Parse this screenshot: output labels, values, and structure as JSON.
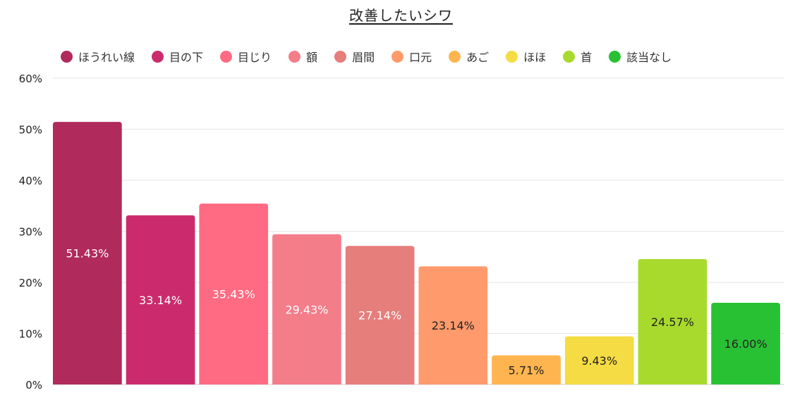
{
  "chart_data": {
    "type": "bar",
    "title": "改善したいシワ",
    "xlabel": "",
    "ylabel": "",
    "ylim": [
      0,
      60
    ],
    "yticks": [
      0,
      10,
      20,
      30,
      40,
      50,
      60
    ],
    "ytick_suffix": "%",
    "grid": true,
    "legend_position": "top",
    "categories": [
      "ほうれい線",
      "目の下",
      "目じり",
      "額",
      "眉間",
      "口元",
      "あご",
      "ほほ",
      "首",
      "該当なし"
    ],
    "values": [
      51.43,
      33.14,
      35.43,
      29.43,
      27.14,
      23.14,
      5.71,
      9.43,
      24.57,
      16.0
    ],
    "data_labels": [
      "51.43%",
      "33.14%",
      "35.43%",
      "29.43%",
      "27.14%",
      "23.14%",
      "5.71%",
      "9.43%",
      "24.57%",
      "16.00%"
    ],
    "colors": [
      "#b02a5c",
      "#cb2b6c",
      "#ff6b82",
      "#f47d8a",
      "#e67e7c",
      "#ff9a6c",
      "#ffb54f",
      "#f6dc44",
      "#a8da2e",
      "#28c134"
    ],
    "label_colors": [
      "#ffffff",
      "#ffffff",
      "#ffffff",
      "#ffffff",
      "#ffffff",
      "#222222",
      "#222222",
      "#222222",
      "#222222",
      "#222222"
    ]
  }
}
